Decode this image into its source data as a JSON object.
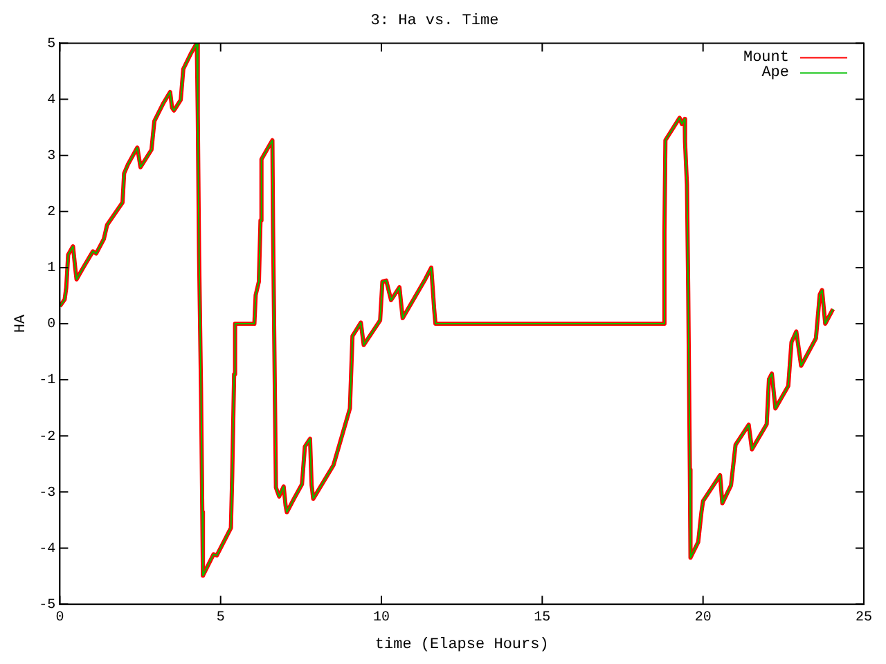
{
  "chart_data": {
    "type": "line",
    "title": "3: Ha vs. Time",
    "xlabel": "time (Elapse Hours)",
    "ylabel": "HA",
    "x": [
      0,
      0.15,
      0.2,
      0.26,
      0.41,
      0.48,
      0.52,
      0.74,
      1.03,
      1.13,
      1.37,
      1.47,
      1.95,
      2.0,
      2.12,
      2.41,
      2.51,
      2.85,
      2.94,
      3.22,
      3.43,
      3.49,
      3.55,
      3.76,
      3.84,
      4.08,
      4.26,
      4.29,
      4.33,
      4.39,
      4.43,
      4.45,
      4.78,
      4.88,
      5.32,
      5.36,
      5.42,
      5.45,
      6.05,
      6.09,
      6.19,
      6.24,
      6.27,
      6.51,
      6.61,
      6.63,
      6.69,
      6.72,
      6.82,
      6.96,
      7.02,
      7.06,
      7.28,
      7.53,
      7.62,
      7.78,
      7.83,
      7.88,
      8.51,
      9.02,
      9.1,
      9.36,
      9.45,
      9.96,
      10.03,
      10.15,
      10.3,
      10.56,
      10.66,
      11.36,
      11.55,
      11.64,
      11.68,
      18.76,
      18.8,
      18.83,
      19.27,
      19.34,
      19.43,
      19.44,
      19.5,
      19.54,
      19.59,
      19.61,
      19.85,
      19.95,
      20.0,
      20.53,
      20.6,
      20.87,
      21.01,
      21.42,
      21.52,
      21.98,
      22.05,
      22.14,
      22.25,
      22.65,
      22.75,
      22.9,
      23.05,
      23.51,
      23.63,
      23.7,
      23.8,
      24.04
    ],
    "series": [
      {
        "name": "Mount",
        "color": "#ff0000",
        "values": [
          0.31,
          0.43,
          0.64,
          1.23,
          1.38,
          0.99,
          0.79,
          1.01,
          1.29,
          1.25,
          1.51,
          1.76,
          2.16,
          2.68,
          2.84,
          3.14,
          2.79,
          3.1,
          3.61,
          3.93,
          4.13,
          3.85,
          3.8,
          3.99,
          4.54,
          4.82,
          5.0,
          3.73,
          1.23,
          -1.14,
          -3.36,
          -4.49,
          -4.11,
          -4.13,
          -3.64,
          -2.72,
          -0.9,
          0,
          0,
          0.51,
          0.75,
          1.84,
          2.93,
          3.17,
          3.27,
          1.72,
          -1.39,
          -2.92,
          -3.08,
          -2.9,
          -3.24,
          -3.36,
          -3.12,
          -2.86,
          -2.19,
          -2.05,
          -2.88,
          -3.12,
          -2.52,
          -1.51,
          -0.22,
          0.02,
          -0.38,
          0.06,
          0.75,
          0.77,
          0.42,
          0.65,
          0.1,
          0.79,
          1.0,
          0.26,
          0,
          0,
          1.63,
          3.27,
          3.67,
          3.56,
          3.65,
          3.24,
          2.48,
          0.54,
          -2.6,
          -4.17,
          -3.89,
          -3.36,
          -3.16,
          -2.7,
          -3.2,
          -2.88,
          -2.16,
          -1.8,
          -2.24,
          -1.79,
          -0.99,
          -0.89,
          -1.51,
          -1.11,
          -0.33,
          -0.14,
          -0.75,
          -0.26,
          0.52,
          0.6,
          0,
          0.26
        ]
      },
      {
        "name": "Ape",
        "color": "#00c000",
        "values": [
          0.31,
          0.43,
          0.64,
          1.23,
          1.38,
          0.99,
          0.79,
          1.01,
          1.29,
          1.25,
          1.51,
          1.76,
          2.16,
          2.68,
          2.84,
          3.14,
          2.79,
          3.1,
          3.61,
          3.93,
          4.13,
          3.85,
          3.8,
          3.99,
          4.54,
          4.82,
          5.0,
          3.73,
          1.23,
          -1.14,
          -3.36,
          -4.49,
          -4.11,
          -4.13,
          -3.64,
          -2.72,
          -0.9,
          0,
          0,
          0.51,
          0.75,
          1.84,
          2.93,
          3.17,
          3.27,
          1.72,
          -1.39,
          -2.92,
          -3.08,
          -2.9,
          -3.24,
          -3.36,
          -3.12,
          -2.86,
          -2.19,
          -2.05,
          -2.88,
          -3.12,
          -2.52,
          -1.51,
          -0.22,
          0.02,
          -0.38,
          0.06,
          0.75,
          0.77,
          0.42,
          0.65,
          0.1,
          0.79,
          1.0,
          0.26,
          0,
          0,
          1.63,
          3.27,
          3.67,
          3.56,
          3.65,
          3.24,
          2.48,
          0.54,
          -2.6,
          -4.17,
          -3.89,
          -3.36,
          -3.16,
          -2.7,
          -3.2,
          -2.88,
          -2.16,
          -1.8,
          -2.24,
          -1.79,
          -0.99,
          -0.89,
          -1.51,
          -1.11,
          -0.33,
          -0.14,
          -0.75,
          -0.26,
          0.52,
          0.6,
          0,
          0.26
        ]
      }
    ],
    "xlim": [
      0,
      25
    ],
    "xticks": [
      0,
      5,
      10,
      15,
      20,
      25
    ],
    "ylim": [
      -5,
      5
    ],
    "yticks": [
      -5,
      -4,
      -3,
      -2,
      -1,
      0,
      1,
      2,
      3,
      4,
      5
    ],
    "grid": false,
    "legend": "top right",
    "marker": "none",
    "line_style": "solid"
  }
}
